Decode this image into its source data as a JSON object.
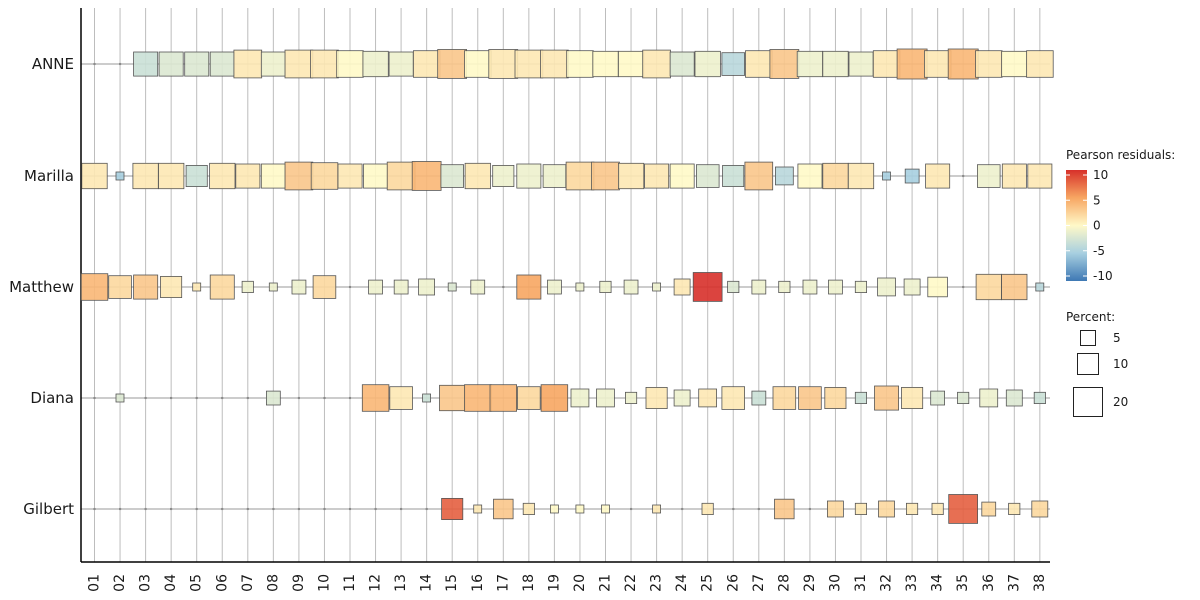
{
  "chart_data": {
    "type": "heatmap",
    "subtype": "tile-plot (square size = percent, fill = Pearson residual)",
    "rows": [
      "ANNE",
      "Marilla",
      "Matthew",
      "Diana",
      "Gilbert"
    ],
    "columns": [
      "01",
      "02",
      "03",
      "04",
      "05",
      "06",
      "07",
      "08",
      "09",
      "10",
      "11",
      "12",
      "13",
      "14",
      "15",
      "16",
      "17",
      "18",
      "19",
      "20",
      "21",
      "22",
      "23",
      "24",
      "25",
      "26",
      "27",
      "28",
      "29",
      "30",
      "31",
      "32",
      "33",
      "34",
      "35",
      "36",
      "37",
      "38"
    ],
    "size_values": [
      [
        0,
        0,
        9,
        9,
        9,
        9,
        12,
        9,
        12,
        12,
        11,
        10,
        9,
        11,
        13,
        11,
        13,
        12,
        12,
        11,
        10,
        10,
        12,
        9,
        10,
        8,
        11,
        13,
        10,
        10,
        9,
        11,
        14,
        11,
        14,
        11,
        10,
        11
      ],
      [
        10,
        1,
        10,
        10,
        7,
        10,
        9,
        9,
        12,
        11,
        9,
        9,
        12,
        13,
        8,
        10,
        7,
        9,
        8,
        12,
        12,
        10,
        9,
        9,
        8,
        7,
        12,
        5,
        9,
        10,
        10,
        1,
        3,
        9,
        0,
        8,
        9,
        9
      ],
      [
        11,
        8,
        9,
        7,
        1,
        9,
        2,
        1,
        3,
        8,
        0,
        3,
        3,
        4,
        1,
        3,
        0,
        9,
        3,
        1,
        2,
        3,
        1,
        4,
        13,
        2,
        3,
        2,
        3,
        3,
        2,
        5,
        4,
        6,
        0,
        10,
        10,
        1
      ],
      [
        0,
        1,
        0,
        0,
        0,
        0,
        0,
        3,
        0,
        0,
        0,
        11,
        8,
        1,
        10,
        11,
        11,
        8,
        11,
        5,
        5,
        2,
        7,
        4,
        5,
        8,
        3,
        8,
        8,
        7,
        2,
        9,
        7,
        3,
        2,
        5,
        4,
        2
      ],
      [
        0,
        0,
        0,
        0,
        0,
        0,
        0,
        0,
        0,
        0,
        0,
        0,
        0,
        0,
        7,
        1,
        6,
        2,
        1,
        1,
        1,
        0,
        1,
        0,
        2,
        0,
        0,
        6,
        0,
        4,
        2,
        4,
        2,
        2,
        13,
        3,
        2,
        4
      ]
    ],
    "residual_values": [
      [
        0,
        0,
        -3,
        -2,
        -2,
        -2,
        1,
        -1,
        1,
        1,
        0,
        -1,
        -1,
        1,
        3,
        0,
        1,
        1,
        1,
        0,
        0,
        0,
        1,
        -2,
        -1,
        -4,
        1,
        3,
        -1,
        -1,
        -1,
        1,
        4,
        1,
        4,
        1,
        0,
        1
      ],
      [
        1,
        -5,
        1,
        1,
        -3,
        1,
        1,
        0,
        3,
        2,
        1,
        0,
        2,
        4,
        -2,
        1,
        -1,
        -1,
        -1,
        2,
        3,
        1,
        1,
        0,
        -2,
        -3,
        3,
        -4,
        0,
        2,
        1,
        -5,
        -5,
        1,
        0,
        -1,
        1,
        1
      ],
      [
        4,
        2,
        3,
        1,
        1,
        2,
        -1,
        -1,
        -1,
        2,
        0,
        -1,
        -1,
        -1,
        -2,
        -1,
        0,
        5,
        -1,
        -1,
        -1,
        -1,
        -1,
        1,
        10,
        -2,
        -1,
        -1,
        -1,
        -1,
        -1,
        -1,
        -1,
        0,
        0,
        2,
        3,
        -4
      ],
      [
        0,
        -2,
        0,
        0,
        0,
        0,
        0,
        -2,
        0,
        0,
        0,
        4,
        1,
        -3,
        3,
        4,
        4,
        2,
        5,
        -1,
        -1,
        -1,
        1,
        -1,
        1,
        1,
        -3,
        2,
        3,
        2,
        -3,
        3,
        1,
        -2,
        -2,
        -1,
        -2,
        -3
      ],
      [
        0,
        0,
        0,
        0,
        0,
        0,
        0,
        0,
        0,
        0,
        0,
        0,
        0,
        0,
        8,
        1,
        3,
        1,
        0,
        0,
        0,
        0,
        1,
        0,
        1,
        0,
        0,
        3,
        0,
        2,
        1,
        2,
        1,
        1,
        8,
        2,
        1,
        2
      ]
    ],
    "color_legend": {
      "title": "Pearson residuals:",
      "ticks": [
        10,
        5,
        0,
        -5,
        -10
      ]
    },
    "size_legend": {
      "title": "Percent:",
      "ticks": [
        5,
        10,
        20
      ]
    },
    "grid": true,
    "legend_position": "right"
  }
}
